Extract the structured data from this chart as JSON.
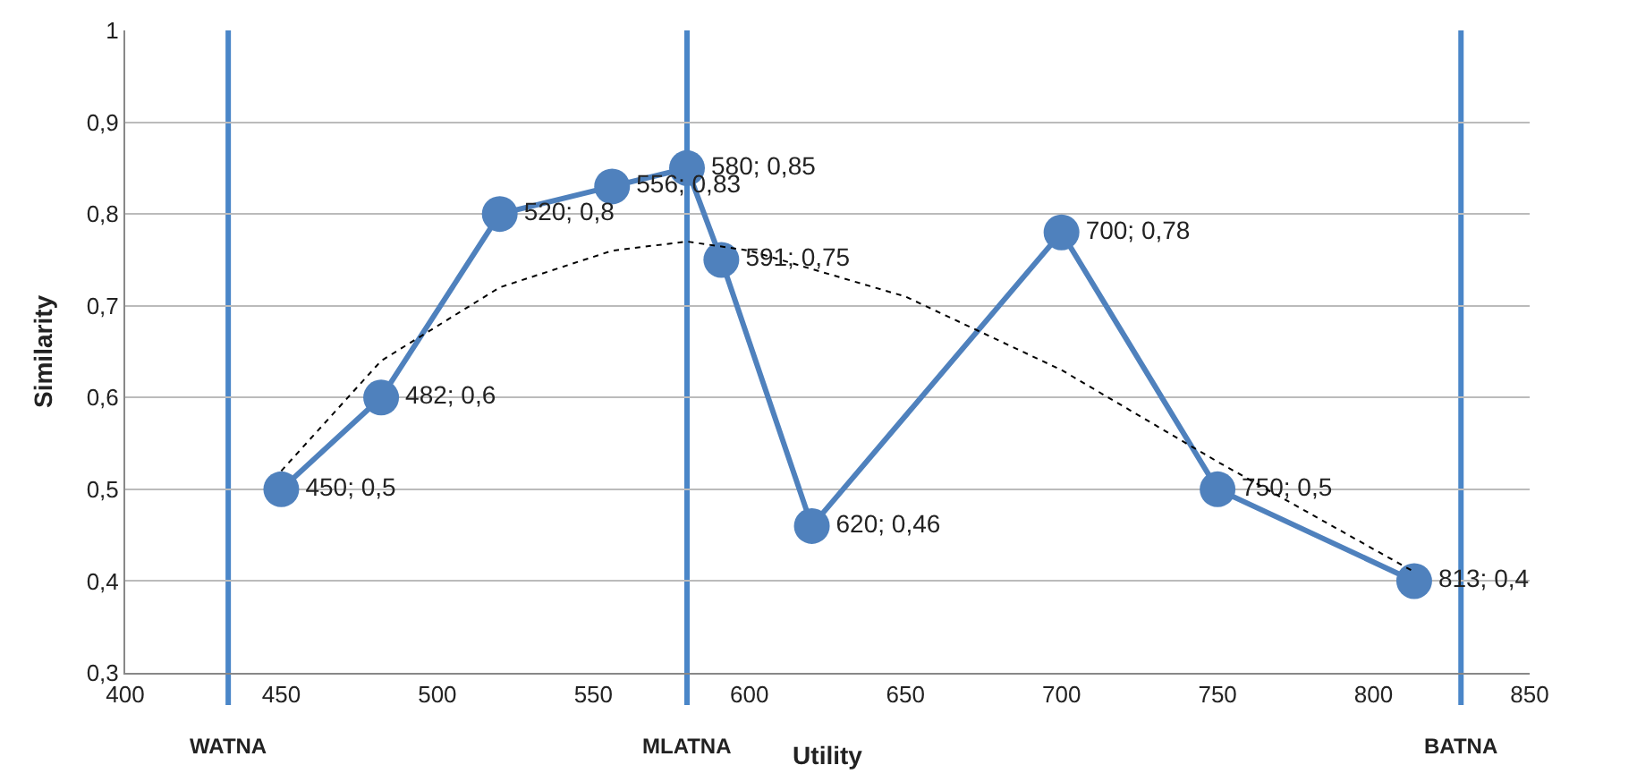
{
  "chart_data": {
    "type": "line",
    "xlabel": "Utility",
    "ylabel": "Similarity",
    "xlim": [
      400,
      850
    ],
    "xticks": [
      400,
      450,
      500,
      550,
      600,
      650,
      700,
      750,
      800,
      850
    ],
    "ylim": [
      0.3,
      1
    ],
    "yticks": [
      {
        "value": 0.3,
        "label": "0,3"
      },
      {
        "value": 0.4,
        "label": "0,4"
      },
      {
        "value": 0.5,
        "label": "0,5"
      },
      {
        "value": 0.6,
        "label": "0,6"
      },
      {
        "value": 0.7,
        "label": "0,7"
      },
      {
        "value": 0.8,
        "label": "0,8"
      },
      {
        "value": 0.9,
        "label": "0,9"
      },
      {
        "value": 1,
        "label": "1"
      }
    ],
    "grid": "y",
    "legend": false,
    "series": [
      {
        "color": "#4f81bd",
        "marker": "circle",
        "line_style": "solid",
        "x": [
          450,
          482,
          520,
          556,
          580,
          591,
          620,
          700,
          750,
          813
        ],
        "values": [
          0.5,
          0.6,
          0.8,
          0.83,
          0.85,
          0.75,
          0.46,
          0.78,
          0.5,
          0.4
        ],
        "value_labels": [
          "450; 0,5",
          "482; 0,6",
          "520; 0,8",
          "556; 0,83",
          "580; 0,85",
          "591; 0,75",
          "620; 0,46",
          "700; 0,78",
          "750; 0,5",
          "813; 0,4"
        ]
      },
      {
        "color": "#000000",
        "marker": "none",
        "line_style": "dotted",
        "x": [
          450,
          482,
          520,
          556,
          580,
          600,
          650,
          700,
          750,
          813
        ],
        "values": [
          0.52,
          0.64,
          0.72,
          0.76,
          0.77,
          0.76,
          0.71,
          0.63,
          0.53,
          0.41
        ]
      }
    ],
    "ref_lines": [
      {
        "axis": "x",
        "value": 433,
        "label": "WATNA",
        "color": "#4a86c8"
      },
      {
        "axis": "x",
        "value": 580,
        "label": "MLATNA",
        "color": "#4a86c8"
      },
      {
        "axis": "x",
        "value": 828,
        "label": "BATNA",
        "color": "#4a86c8"
      }
    ]
  }
}
